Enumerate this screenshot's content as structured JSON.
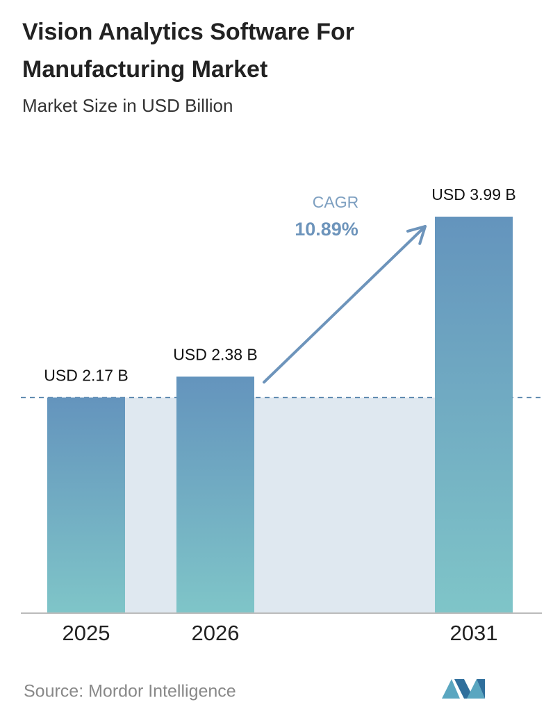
{
  "chart_data": {
    "type": "bar",
    "title": [
      "Vision Analytics Software For",
      "Manufacturing Market"
    ],
    "subtitle": "Market Size in USD Billion",
    "categories": [
      "2025",
      "2026",
      "2031"
    ],
    "values": [
      2.17,
      2.38,
      3.99
    ],
    "value_labels": [
      "USD 2.17 B",
      "USD 2.38 B",
      "USD 3.99 B"
    ],
    "annotations": [
      "CAGR",
      "10.89%"
    ],
    "source": "Source: Mordor Intelligence",
    "color": [
      "#6494bd",
      "#7fc5c8"
    ]
  }
}
